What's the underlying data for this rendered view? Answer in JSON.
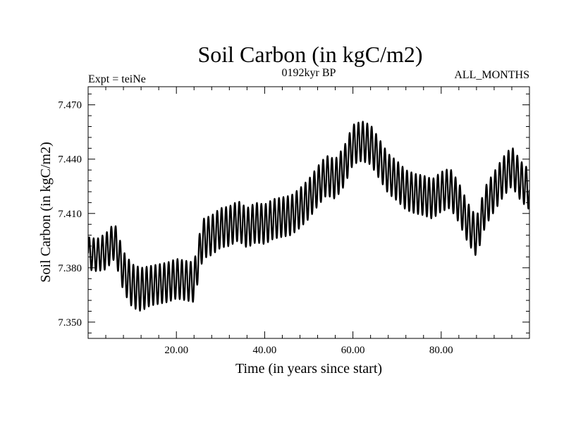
{
  "chart_data": {
    "type": "line",
    "title": "Soil Carbon (in kgC/m2)",
    "subtitle": "0192kyr BP",
    "left_note": "Expt = teiNe",
    "right_note": "ALL_MONTHS",
    "xlabel": "Time (in years since start)",
    "ylabel": "Soil Carbon (in kgC/m2)",
    "xlim": [
      0,
      100
    ],
    "ylim": [
      7.341,
      7.48
    ],
    "x_ticks": [
      20,
      40,
      60,
      80
    ],
    "x_tick_labels": [
      "20.00",
      "40.00",
      "60.00",
      "80.00"
    ],
    "y_ticks": [
      7.35,
      7.38,
      7.41,
      7.44,
      7.47
    ],
    "y_tick_labels": [
      "7.350",
      "7.380",
      "7.410",
      "7.440",
      "7.470"
    ],
    "series": [
      {
        "name": "Soil Carbon",
        "cycle_period_years": 1.0,
        "trend_x": [
          0,
          2,
          4,
          6,
          8,
          10,
          12,
          14,
          16,
          18,
          20,
          22,
          24,
          25,
          26,
          28,
          30,
          32,
          34,
          36,
          38,
          40,
          42,
          44,
          46,
          48,
          50,
          52,
          54,
          56,
          58,
          60,
          62,
          64,
          66,
          68,
          70,
          72,
          74,
          76,
          78,
          80,
          82,
          84,
          86,
          88,
          90,
          92,
          94,
          96,
          98,
          100
        ],
        "trend_y": [
          7.388,
          7.387,
          7.389,
          7.395,
          7.378,
          7.37,
          7.368,
          7.37,
          7.371,
          7.372,
          7.374,
          7.373,
          7.372,
          7.385,
          7.396,
          7.398,
          7.402,
          7.403,
          7.406,
          7.402,
          7.405,
          7.404,
          7.407,
          7.408,
          7.409,
          7.413,
          7.418,
          7.425,
          7.431,
          7.429,
          7.436,
          7.448,
          7.45,
          7.448,
          7.44,
          7.432,
          7.428,
          7.423,
          7.421,
          7.42,
          7.418,
          7.422,
          7.424,
          7.416,
          7.405,
          7.397,
          7.414,
          7.422,
          7.43,
          7.436,
          7.428,
          7.423
        ],
        "trend_samples_per_year": 24,
        "amplitude_y": [
          0.009,
          0.009,
          0.01,
          0.01,
          0.011,
          0.012,
          0.012,
          0.011,
          0.011,
          0.011,
          0.011,
          0.011,
          0.011,
          0.011,
          0.011,
          0.011,
          0.011,
          0.011,
          0.011,
          0.011,
          0.011,
          0.011,
          0.011,
          0.011,
          0.011,
          0.011,
          0.011,
          0.011,
          0.011,
          0.011,
          0.011,
          0.011,
          0.011,
          0.011,
          0.011,
          0.011,
          0.011,
          0.011,
          0.011,
          0.011,
          0.011,
          0.011,
          0.011,
          0.011,
          0.011,
          0.011,
          0.011,
          0.011,
          0.011,
          0.011,
          0.011,
          0.011
        ]
      }
    ]
  }
}
